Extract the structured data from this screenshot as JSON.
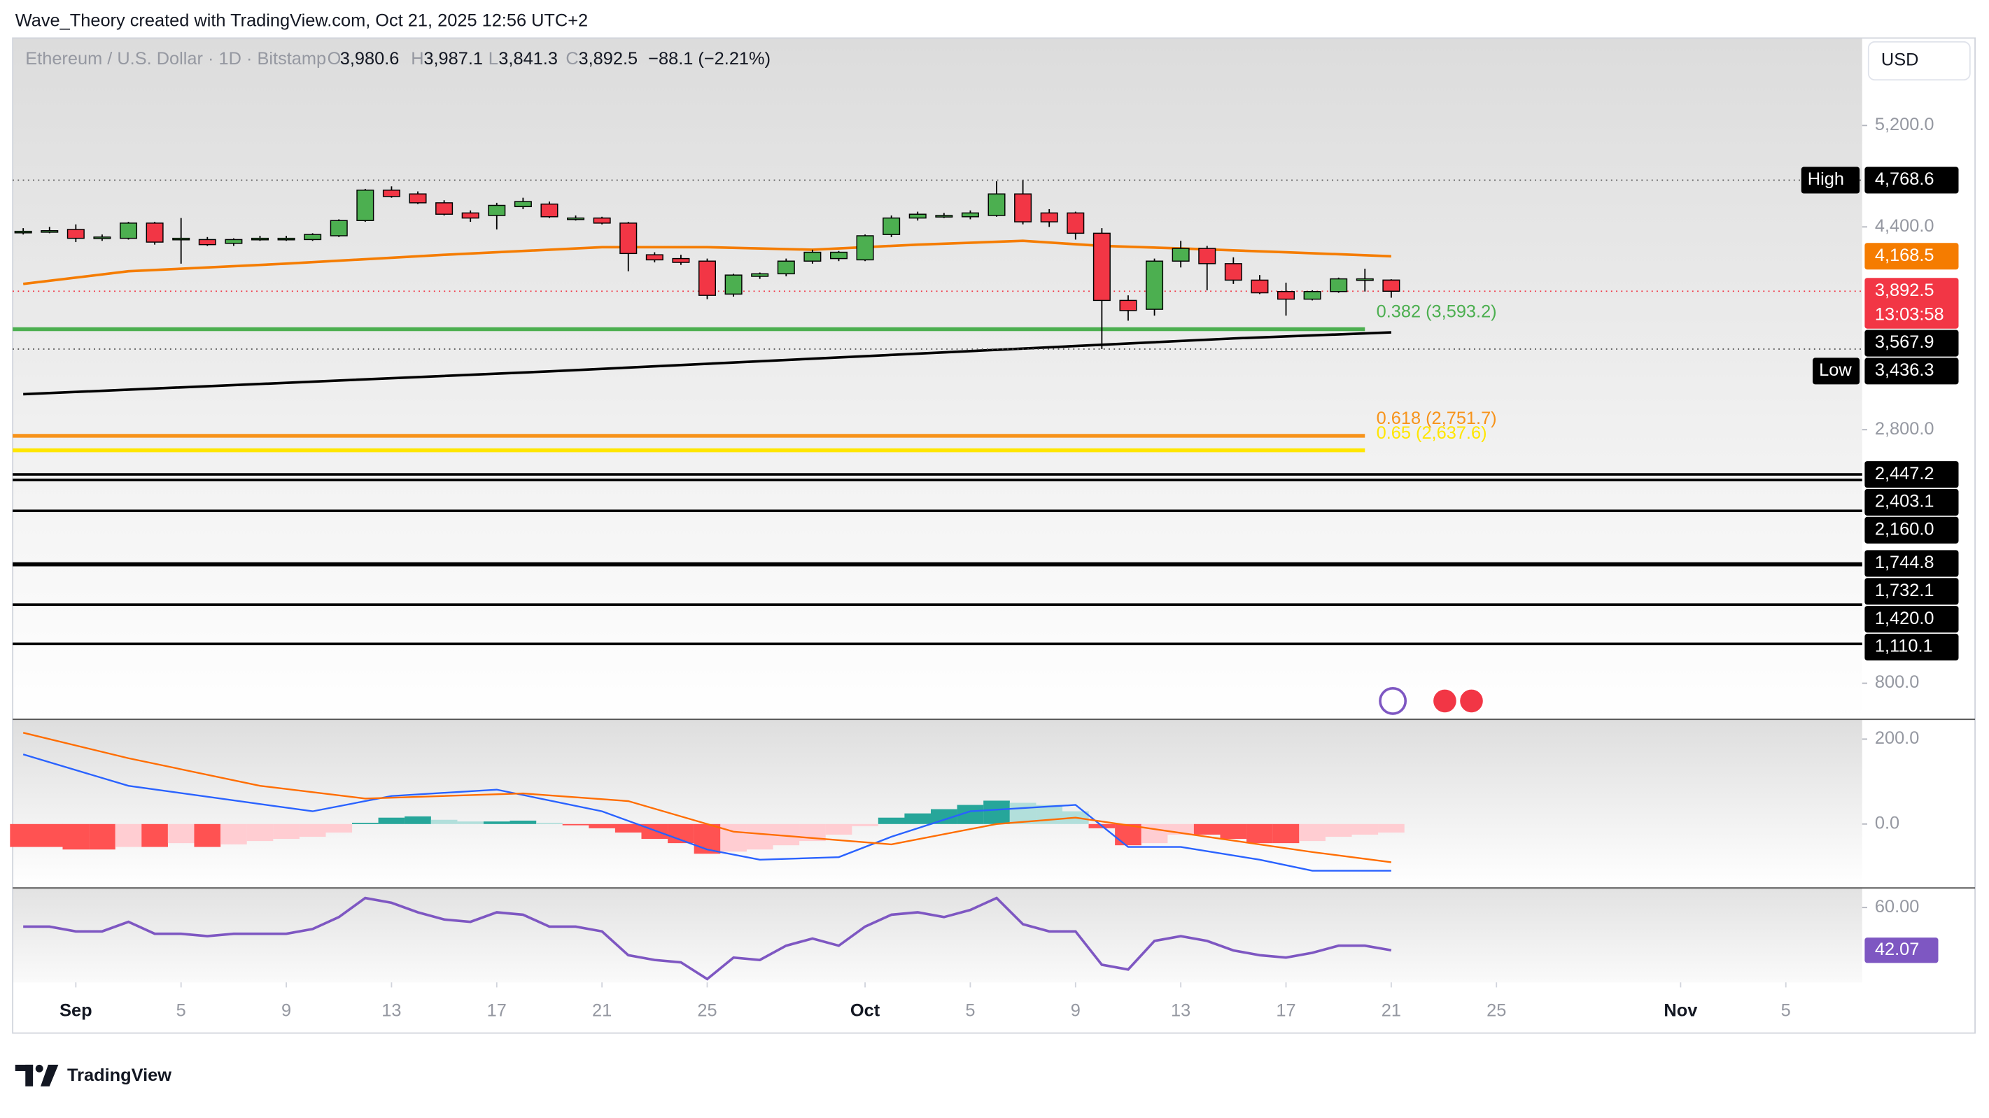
{
  "header": {
    "attribution": "Wave_Theory created with TradingView.com, Oct 21, 2025 12:56 UTC+2"
  },
  "currency_button": "USD",
  "footer": {
    "logo": "TradingView"
  },
  "chart_data": [
    {
      "type": "candlestick",
      "title": "Ethereum / U.S. Dollar · 1D · Bitstamp",
      "legend": {
        "keys": [
          "O",
          "H",
          "L",
          "C"
        ],
        "value_labels": [
          "3,980.6",
          "3,987.1",
          "3,841.3",
          "3,892.5"
        ],
        "change_label": "−88.1 (−2.21%)"
      },
      "up_color": "#4caf50",
      "down_color": "#f23645",
      "x": [
        -2,
        -1,
        0,
        1,
        2,
        3,
        4,
        5,
        6,
        7,
        8,
        9,
        10,
        11,
        12,
        13,
        14,
        15,
        16,
        17,
        18,
        19,
        20,
        21,
        22,
        23,
        24,
        25,
        26,
        27,
        28,
        29,
        30,
        31,
        32,
        33,
        34,
        35,
        36,
        37,
        38,
        39,
        40,
        41,
        42,
        43,
        44,
        45,
        46,
        47,
        48,
        49,
        50
      ],
      "open": [
        4360,
        4365,
        4380,
        4310,
        4310,
        4430,
        4300,
        4300,
        4270,
        4300,
        4310,
        4300,
        4330,
        4450,
        4690,
        4660,
        4590,
        4510,
        4490,
        4560,
        4580,
        4470,
        4470,
        4430,
        4180,
        4150,
        4130,
        3870,
        4010,
        4030,
        4130,
        4150,
        4140,
        4340,
        4470,
        4490,
        4480,
        4490,
        4660,
        4510,
        4510,
        4350,
        3820,
        3750,
        4130,
        4230,
        4110,
        3980,
        3890,
        3830,
        3890,
        3980,
        3980.6
      ],
      "high": [
        4390,
        4400,
        4420,
        4340,
        4440,
        4440,
        4470,
        4320,
        4310,
        4330,
        4330,
        4350,
        4460,
        4700,
        4720,
        4680,
        4610,
        4530,
        4590,
        4630,
        4600,
        4490,
        4480,
        4440,
        4200,
        4180,
        4150,
        4030,
        4040,
        4150,
        4220,
        4210,
        4340,
        4490,
        4520,
        4510,
        4530,
        4760,
        4768.6,
        4540,
        4520,
        4390,
        3860,
        4150,
        4290,
        4250,
        4160,
        4020,
        3960,
        3900,
        4000,
        4070,
        3987.1
      ],
      "low": [
        4340,
        4350,
        4280,
        4290,
        4300,
        4260,
        4110,
        4250,
        4250,
        4290,
        4290,
        4290,
        4320,
        4440,
        4630,
        4580,
        4490,
        4440,
        4380,
        4540,
        4470,
        4450,
        4420,
        4050,
        4120,
        4100,
        3830,
        3850,
        3990,
        4010,
        4110,
        4130,
        4130,
        4320,
        4450,
        4470,
        4460,
        4480,
        4420,
        4400,
        4300,
        3436.3,
        3660,
        3700,
        4080,
        3900,
        3950,
        3870,
        3700,
        3820,
        3880,
        3890,
        3841.3
      ],
      "close": [
        4365,
        4370,
        4310,
        4320,
        4430,
        4280,
        4310,
        4260,
        4300,
        4310,
        4310,
        4340,
        4450,
        4690,
        4640,
        4590,
        4500,
        4470,
        4570,
        4600,
        4480,
        4470,
        4430,
        4190,
        4140,
        4120,
        3860,
        4020,
        4030,
        4130,
        4200,
        4200,
        4330,
        4470,
        4500,
        4490,
        4510,
        4660,
        4440,
        4440,
        4350,
        3820,
        3740,
        4130,
        4230,
        4110,
        3980,
        3880,
        3830,
        3890,
        3990,
        3990,
        3892.5
      ],
      "xlim": [
        -2.4,
        67.9
      ],
      "xticks": [
        {
          "value": 0,
          "label": "Sep"
        },
        {
          "value": 4,
          "label": "5"
        },
        {
          "value": 8,
          "label": "9"
        },
        {
          "value": 12,
          "label": "13"
        },
        {
          "value": 16,
          "label": "17"
        },
        {
          "value": 20,
          "label": "21"
        },
        {
          "value": 24,
          "label": "25"
        },
        {
          "value": 30,
          "label": "Oct"
        },
        {
          "value": 34,
          "label": "5"
        },
        {
          "value": 38,
          "label": "9"
        },
        {
          "value": 42,
          "label": "13"
        },
        {
          "value": 46,
          "label": "17"
        },
        {
          "value": 50,
          "label": "21"
        },
        {
          "value": 54,
          "label": "25"
        },
        {
          "value": 61,
          "label": "Nov"
        },
        {
          "value": 65,
          "label": "5"
        }
      ],
      "ylim": [
        520,
        5890
      ],
      "yticks": [
        {
          "value": 5200,
          "label": "5,200.0"
        },
        {
          "value": 4400,
          "label": "4,400.0"
        },
        {
          "value": 2800,
          "label": "2,800.0"
        },
        {
          "value": 800,
          "label": "800.0"
        }
      ],
      "moving_averages": [
        {
          "color": "#f57c00",
          "x": [
            -2,
            2,
            8,
            14,
            20,
            24,
            28,
            32,
            36,
            39,
            42,
            46,
            50
          ],
          "values": [
            3950,
            4050,
            4110,
            4180,
            4240,
            4240,
            4220,
            4260,
            4290,
            4250,
            4230,
            4200,
            4168.5
          ],
          "end_label": "4,168.5"
        },
        {
          "color": "#000000",
          "x": [
            -2,
            8,
            18,
            28,
            38,
            44,
            50
          ],
          "values": [
            3080,
            3170,
            3260,
            3360,
            3460,
            3520,
            3567.9
          ],
          "end_label": "3,567.9"
        }
      ],
      "high_marker": {
        "label": "High",
        "value": 4768.6,
        "value_label": "4,768.6"
      },
      "low_marker": {
        "label": "Low",
        "value": 3436.3,
        "value_label": "3,436.3"
      },
      "last_price": {
        "value": 3892.5,
        "value_label": "3,892.5",
        "countdown": "13:03:58"
      },
      "fib_levels": [
        {
          "value": 3593.2,
          "label": "0.382 (3,593.2)",
          "color": "#4caf50"
        },
        {
          "value": 2751.7,
          "label": "0.618 (2,751.7)",
          "color": "#f7931a"
        },
        {
          "value": 2637.6,
          "label": "0.65 (2,637.6)",
          "color": "#ffe600"
        }
      ],
      "levels": [
        {
          "value": 2447.2,
          "label": "2,447.2"
        },
        {
          "value": 2403.1,
          "label": "2,403.1"
        },
        {
          "value": 2160.0,
          "label": "2,160.0"
        },
        {
          "value": 1744.8,
          "label": "1,744.8"
        },
        {
          "value": 1732.1,
          "label": "1,732.1"
        },
        {
          "value": 1420.0,
          "label": "1,420.0"
        },
        {
          "value": 1110.1,
          "label": "1,110.1"
        }
      ]
    },
    {
      "type": "macd",
      "ylim": [
        -149,
        245
      ],
      "yticks": [
        {
          "value": 200,
          "label": "200.0"
        },
        {
          "value": 0,
          "label": "0.0"
        }
      ],
      "histogram": [
        -54,
        -54,
        -60,
        -60,
        -54,
        -54,
        -45,
        -54,
        -48,
        -40,
        -35,
        -30,
        -20,
        3,
        15,
        18,
        10,
        6,
        6,
        8,
        3,
        -3,
        -10,
        -20,
        -35,
        -45,
        -70,
        -65,
        -60,
        -50,
        -40,
        -25,
        -5,
        15,
        25,
        35,
        45,
        55,
        50,
        45,
        30,
        -10,
        -50,
        -45,
        -25,
        -25,
        -35,
        -45,
        -45,
        -40,
        -30,
        -25,
        -20
      ],
      "histogram_colors": [
        "#26a69a",
        "#b2dfdb",
        "#ff5252",
        "#ffcdd2"
      ],
      "series": [
        {
          "color": "#2962ff",
          "x": [
            -2,
            2,
            9,
            12,
            16,
            20,
            24,
            26,
            29,
            31,
            34,
            38,
            40,
            42,
            45,
            47,
            50
          ],
          "values": [
            164,
            90,
            30,
            66,
            81,
            30,
            -60,
            -84,
            -78,
            -30,
            30,
            45,
            -54,
            -54,
            -84,
            -110,
            -110
          ]
        },
        {
          "color": "#ff6d00",
          "x": [
            -2,
            2,
            7,
            11,
            17,
            21,
            25,
            31,
            35,
            38,
            42,
            47,
            50
          ],
          "values": [
            215,
            155,
            90,
            60,
            72,
            54,
            -18,
            -48,
            0,
            15,
            -21,
            -66,
            -90
          ]
        }
      ]
    },
    {
      "type": "rsi",
      "ylim": [
        28.6,
        68.5
      ],
      "yticks": [
        {
          "value": 60,
          "label": "60.00"
        }
      ],
      "color": "#7e57c2",
      "values": [
        52,
        52,
        50,
        50,
        54,
        49,
        49,
        48,
        49,
        49,
        49,
        51,
        56,
        64,
        62,
        58,
        55,
        54,
        58,
        57,
        52,
        52,
        50,
        40,
        38,
        37,
        30,
        39,
        38,
        44,
        47,
        44,
        52,
        57,
        58,
        56,
        59,
        64,
        53,
        50,
        50,
        36,
        34,
        46,
        48,
        46,
        42,
        40,
        39,
        41,
        44,
        44,
        42.07
      ],
      "last_label": "42.07"
    }
  ]
}
